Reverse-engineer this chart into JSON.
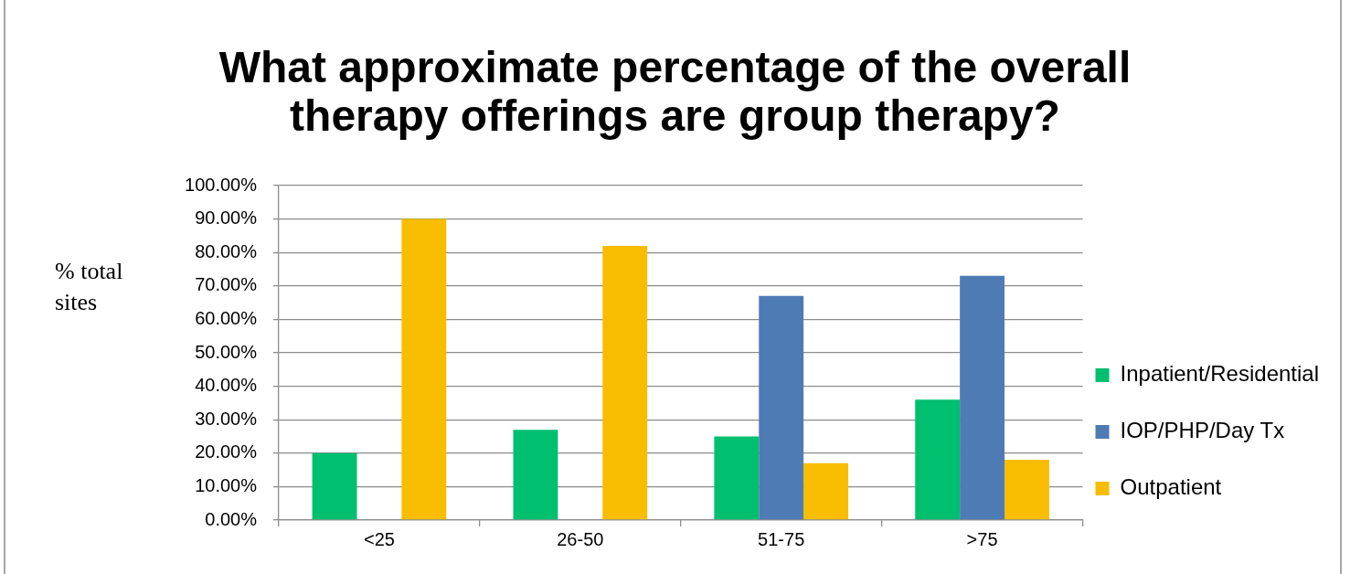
{
  "chart_data": {
    "type": "bar",
    "title": "What approximate percentage of the overall therapy offerings are group therapy?",
    "ylabel": "% total sites",
    "categories": [
      "<25",
      "26-50",
      "51-75",
      ">75"
    ],
    "series": [
      {
        "name": "Inpatient/Residential",
        "color": "#00bf6f",
        "values": [
          20,
          27,
          25,
          36
        ]
      },
      {
        "name": "IOP/PHP/Day Tx",
        "color": "#4f7bb5",
        "values": [
          null,
          null,
          67,
          73
        ]
      },
      {
        "name": "Outpatient",
        "color": "#f8bd00",
        "values": [
          90,
          82,
          17,
          18
        ]
      }
    ],
    "ylim": [
      0,
      100
    ],
    "yticks": [
      {
        "value": 0,
        "label": "0.00%"
      },
      {
        "value": 10,
        "label": "10.00%"
      },
      {
        "value": 20,
        "label": "20.00%"
      },
      {
        "value": 30,
        "label": "30.00%"
      },
      {
        "value": 40,
        "label": "40.00%"
      },
      {
        "value": 50,
        "label": "50.00%"
      },
      {
        "value": 60,
        "label": "60.00%"
      },
      {
        "value": 70,
        "label": "70.00%"
      },
      {
        "value": 80,
        "label": "80.00%"
      },
      {
        "value": 90,
        "label": "90.00%"
      },
      {
        "value": 100,
        "label": "100.00%"
      }
    ],
    "grid": "y",
    "legend": "right"
  }
}
